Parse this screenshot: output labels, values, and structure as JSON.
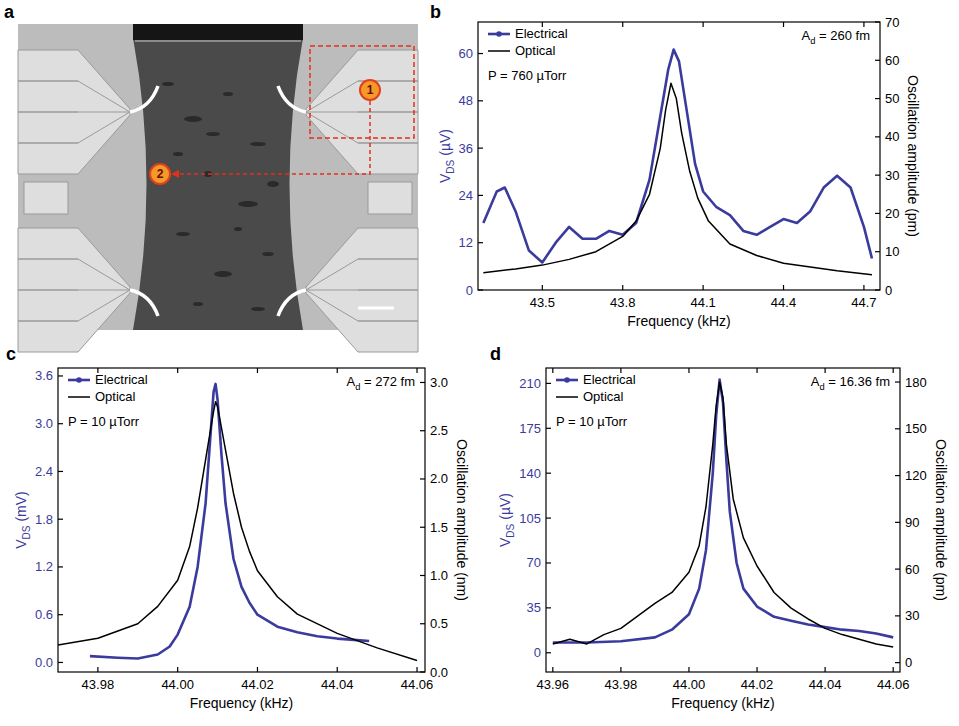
{
  "image": {
    "panel": "a",
    "markers": [
      "1",
      "2"
    ]
  },
  "chart_data": [
    {
      "type": "line",
      "panel": "b",
      "legend": "upper left",
      "x_label": "Frequency (kHz)",
      "y_label": "VDS (µV)",
      "y2_label": "Oscillation amplitude (pm)",
      "annotations": [
        "P = 760 µTorr",
        "Ad = 260 fm"
      ],
      "xlim": [
        43.26,
        44.76
      ],
      "xticks": [
        43.5,
        43.8,
        44.1,
        44.4,
        44.7
      ],
      "ylim": [
        0,
        68
      ],
      "yticks": [
        0,
        12,
        24,
        36,
        48,
        60
      ],
      "y2lim": [
        0,
        70
      ],
      "y2ticks": [
        0,
        10,
        20,
        30,
        40,
        50,
        60,
        70
      ],
      "series": [
        {
          "name": "Electrical",
          "color": "#3b3b9e",
          "x": [
            43.28,
            43.33,
            43.36,
            43.4,
            43.45,
            43.5,
            43.55,
            43.6,
            43.65,
            43.7,
            43.75,
            43.8,
            43.85,
            43.9,
            43.94,
            43.97,
            43.99,
            44.01,
            44.04,
            44.07,
            44.1,
            44.15,
            44.2,
            44.25,
            44.3,
            44.35,
            44.4,
            44.45,
            44.5,
            44.55,
            44.6,
            44.65,
            44.7,
            44.73
          ],
          "values": [
            17,
            25,
            26,
            20,
            10,
            7,
            12,
            16,
            13,
            13,
            15,
            14,
            17,
            28,
            44,
            56,
            61,
            58,
            45,
            32,
            25,
            21,
            19,
            15,
            14,
            16,
            18,
            17,
            20,
            26,
            29,
            26,
            16,
            8
          ]
        },
        {
          "name": "Optical",
          "color": "#000000",
          "axis": "y2",
          "x": [
            43.28,
            43.4,
            43.5,
            43.6,
            43.7,
            43.8,
            43.85,
            43.9,
            43.94,
            43.96,
            43.98,
            44.0,
            44.02,
            44.05,
            44.08,
            44.12,
            44.2,
            44.3,
            44.4,
            44.5,
            44.6,
            44.73
          ],
          "values": [
            4.5,
            5.5,
            6.5,
            8,
            10,
            14,
            18,
            25,
            37,
            47,
            54,
            50,
            41,
            31,
            24,
            18,
            12,
            9,
            7,
            6,
            5,
            4
          ]
        }
      ]
    },
    {
      "type": "line",
      "panel": "c",
      "legend": "upper left",
      "x_label": "Frequency (kHz)",
      "y_label": "VDS (mV)",
      "y2_label": "Oscillation amplitude (nm)",
      "annotations": [
        "P = 10 µTorr",
        "Ad = 272 fm"
      ],
      "xlim": [
        43.97,
        44.062
      ],
      "xticks": [
        43.98,
        {
          "value": 44,
          "label": "44.00"
        },
        44.02,
        44.04,
        44.06
      ],
      "ylim": [
        -0.12,
        3.7
      ],
      "yticks": [
        {
          "value": 0,
          "label": "0.0"
        },
        0.6,
        1.2,
        1.8,
        2.4,
        {
          "value": 3,
          "label": "3.0"
        },
        3.6
      ],
      "y2lim": [
        0,
        3.15
      ],
      "y2ticks": [
        {
          "value": 0,
          "label": "0.0"
        },
        0.5,
        {
          "value": 1,
          "label": "1.0"
        },
        1.5,
        {
          "value": 2,
          "label": "2.0"
        },
        2.5,
        {
          "value": 3,
          "label": "3.0"
        }
      ],
      "series": [
        {
          "name": "Electrical",
          "color": "#3b3b9e",
          "x": [
            43.978,
            43.985,
            43.99,
            43.995,
            43.998,
            44.0,
            44.003,
            44.005,
            44.007,
            44.008,
            44.009,
            44.0095,
            44.01,
            44.011,
            44.012,
            44.014,
            44.016,
            44.018,
            44.02,
            44.025,
            44.03,
            44.035,
            44.04,
            44.045,
            44.048
          ],
          "values": [
            0.08,
            0.06,
            0.05,
            0.1,
            0.2,
            0.35,
            0.7,
            1.2,
            2.0,
            2.7,
            3.4,
            3.5,
            3.3,
            2.6,
            2.0,
            1.3,
            0.95,
            0.75,
            0.6,
            0.45,
            0.38,
            0.33,
            0.3,
            0.28,
            0.27
          ]
        },
        {
          "name": "Optical",
          "color": "#000000",
          "axis": "y2",
          "x": [
            43.97,
            43.98,
            43.99,
            43.995,
            44.0,
            44.003,
            44.005,
            44.007,
            44.009,
            44.0095,
            44.01,
            44.012,
            44.014,
            44.016,
            44.018,
            44.02,
            44.025,
            44.03,
            44.04,
            44.05,
            44.06
          ],
          "values": [
            0.28,
            0.35,
            0.5,
            0.68,
            0.95,
            1.3,
            1.7,
            2.2,
            2.7,
            2.8,
            2.75,
            2.3,
            1.85,
            1.5,
            1.25,
            1.05,
            0.78,
            0.6,
            0.4,
            0.25,
            0.12
          ]
        }
      ]
    },
    {
      "type": "line",
      "panel": "d",
      "legend": "upper left",
      "x_label": "Frequency (kHz)",
      "y_label": "VDS (µV)",
      "y2_label": "Oscillation amplitude (pm)",
      "annotations": [
        "P = 10 µTorr",
        "Ad = 16.36 fm"
      ],
      "xlim": [
        43.958,
        44.062
      ],
      "xticks": [
        43.96,
        43.98,
        {
          "value": 44,
          "label": "44.00"
        },
        44.02,
        44.04,
        44.06
      ],
      "ylim": [
        -15,
        222
      ],
      "yticks": [
        0,
        35,
        70,
        105,
        140,
        175,
        210
      ],
      "y2lim": [
        -6,
        189
      ],
      "y2ticks": [
        0,
        30,
        60,
        90,
        120,
        150,
        180
      ],
      "series": [
        {
          "name": "Electrical",
          "color": "#3b3b9e",
          "x": [
            43.96,
            43.97,
            43.98,
            43.99,
            43.995,
            44.0,
            44.003,
            44.005,
            44.007,
            44.008,
            44.009,
            44.01,
            44.011,
            44.012,
            44.014,
            44.016,
            44.02,
            44.025,
            44.03,
            44.035,
            44.04,
            44.045,
            44.05,
            44.055,
            44.06
          ],
          "values": [
            8,
            8,
            9,
            12,
            18,
            30,
            50,
            80,
            140,
            185,
            213,
            195,
            150,
            110,
            70,
            50,
            36,
            28,
            25,
            22,
            20,
            18,
            17,
            15,
            12
          ]
        },
        {
          "name": "Optical",
          "color": "#000000",
          "axis": "y2",
          "x": [
            43.96,
            43.965,
            43.97,
            43.975,
            43.98,
            43.985,
            43.99,
            43.995,
            44.0,
            44.003,
            44.005,
            44.007,
            44.008,
            44.009,
            44.01,
            44.011,
            44.013,
            44.016,
            44.02,
            44.025,
            44.03,
            44.035,
            44.04,
            44.045,
            44.05,
            44.055,
            44.06
          ],
          "values": [
            12,
            15,
            12,
            18,
            22,
            30,
            38,
            45,
            58,
            75,
            100,
            140,
            165,
            180,
            170,
            140,
            105,
            80,
            62,
            45,
            35,
            28,
            22,
            18,
            15,
            12,
            10
          ]
        }
      ]
    }
  ]
}
